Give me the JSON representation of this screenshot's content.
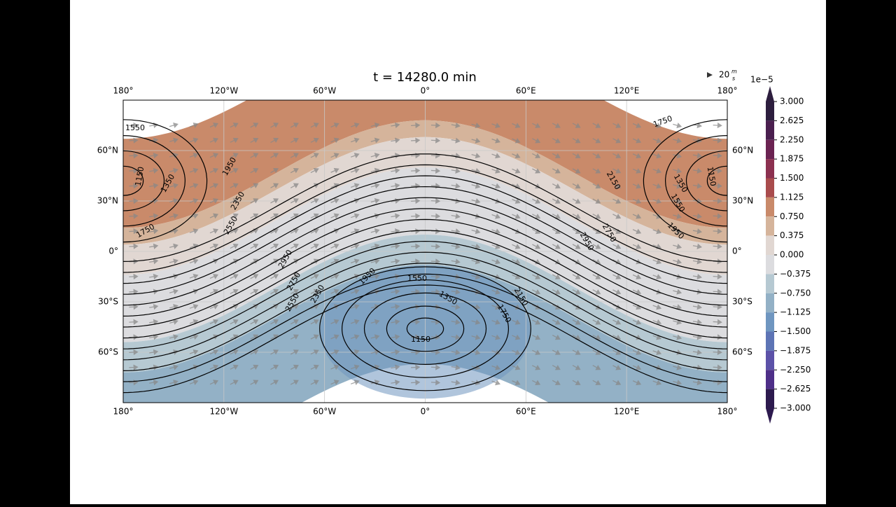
{
  "chart_data": {
    "type": "contour-map",
    "title": "t = 14280.0 min",
    "xlim": [
      -180,
      180
    ],
    "ylim": [
      -90,
      90
    ],
    "xticks": [
      {
        "value": -180,
        "label": "180°"
      },
      {
        "value": -120,
        "label": "120°W"
      },
      {
        "value": -60,
        "label": "60°W"
      },
      {
        "value": 0,
        "label": "0°"
      },
      {
        "value": 60,
        "label": "60°E"
      },
      {
        "value": 120,
        "label": "120°E"
      },
      {
        "value": 180,
        "label": "180°"
      }
    ],
    "yticks": [
      {
        "value": 60,
        "label": "60°N"
      },
      {
        "value": 30,
        "label": "30°N"
      },
      {
        "value": 0,
        "label": "0°"
      },
      {
        "value": -30,
        "label": "30°S"
      },
      {
        "value": -60,
        "label": "60°S"
      }
    ],
    "grid": true,
    "contour_levels": [
      1150,
      1350,
      1550,
      1750,
      1950,
      2150,
      2350,
      2550,
      2750,
      2950
    ],
    "quiver_key": {
      "value": 20,
      "unit_top": "m",
      "unit_bottom": "s"
    },
    "colorbar": {
      "scale_label": "1e−5",
      "lim": [
        -3,
        3
      ],
      "ticks": [
        {
          "value": 3,
          "label": "3.000"
        },
        {
          "value": 2.625,
          "label": "2.625"
        },
        {
          "value": 2.25,
          "label": "2.250"
        },
        {
          "value": 1.875,
          "label": "1.875"
        },
        {
          "value": 1.5,
          "label": "1.500"
        },
        {
          "value": 1.125,
          "label": "1.125"
        },
        {
          "value": 0.75,
          "label": "0.750"
        },
        {
          "value": 0.375,
          "label": "0.375"
        },
        {
          "value": 0,
          "label": "0.000"
        },
        {
          "value": -0.375,
          "label": "−0.375"
        },
        {
          "value": -0.75,
          "label": "−0.750"
        },
        {
          "value": -1.125,
          "label": "−1.125"
        },
        {
          "value": -1.5,
          "label": "−1.500"
        },
        {
          "value": -1.875,
          "label": "−1.875"
        },
        {
          "value": -2.25,
          "label": "−2.250"
        },
        {
          "value": -2.625,
          "label": "−2.625"
        },
        {
          "value": -3,
          "label": "−3.000"
        }
      ],
      "colors": [
        "#2d1e3e",
        "#4a1f4f",
        "#6b2352",
        "#8c3150",
        "#a94c4d",
        "#c98a6a",
        "#d5b49b",
        "#e1d7d2",
        "#dcdcdf",
        "#b6c9d2",
        "#93b1c6",
        "#6f96c0",
        "#5d74b5",
        "#5c52a8",
        "#4e2f88",
        "#2d1a4e"
      ]
    }
  }
}
